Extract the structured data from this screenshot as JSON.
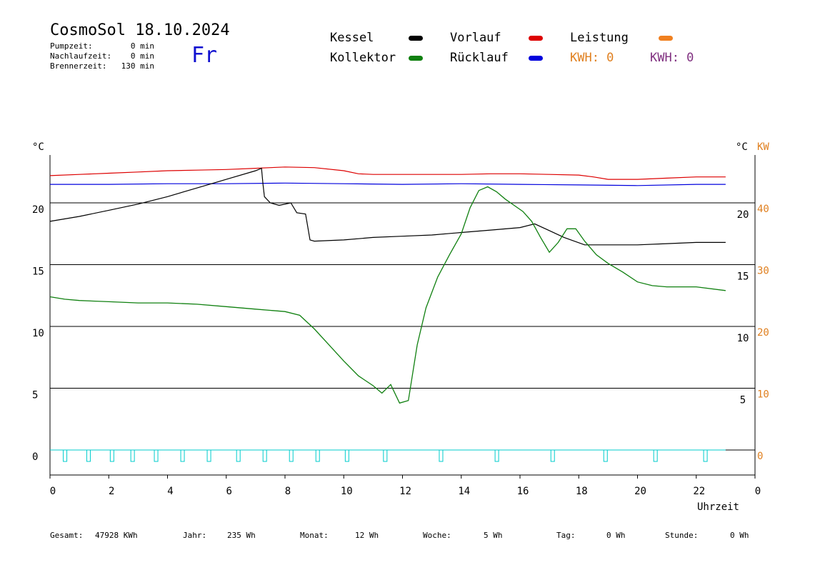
{
  "header": {
    "title": "CosmoSol 18.10.2024",
    "weekday": "Fr",
    "stats": [
      {
        "label": "Pumpzeit:",
        "value": "0 min"
      },
      {
        "label": "Nachlaufzeit:",
        "value": "0 min"
      },
      {
        "label": "Brennerzeit:",
        "value": "130 min"
      }
    ]
  },
  "legend": {
    "kessel": {
      "label": "Kessel",
      "color": "#000000"
    },
    "vorlauf": {
      "label": "Vorlauf",
      "color": "#dd0000"
    },
    "leistung": {
      "label": "Leistung",
      "color": "#f08020"
    },
    "kollektor": {
      "label": "Kollektor",
      "color": "#108010"
    },
    "ruecklauf": {
      "label": "Rücklauf",
      "color": "#0000dd"
    },
    "kwh_orange": {
      "label": "KWH: 0",
      "color": "#e08020"
    },
    "kwh_purple": {
      "label": "KWH: 0",
      "color": "#803080"
    }
  },
  "footer": {
    "gesamt": {
      "label": "Gesamt:",
      "value": "47928 KWh"
    },
    "jahr": {
      "label": "Jahr:",
      "value": "235 Wh"
    },
    "monat": {
      "label": "Monat:",
      "value": "12 Wh"
    },
    "woche": {
      "label": "Woche:",
      "value": "5 Wh"
    },
    "tag": {
      "label": "Tag:",
      "value": "0 Wh"
    },
    "stunde": {
      "label": "Stunde:",
      "value": "0 Wh"
    }
  },
  "chart_data": {
    "type": "line",
    "xlabel": "Uhrzeit",
    "ylabel_left": "°C",
    "ylabel_right": "°C",
    "ylabel_right2": "KW",
    "xlim": [
      0,
      24
    ],
    "ylim": [
      -2,
      24.5
    ],
    "x_ticks": [
      "0",
      "2",
      "4",
      "6",
      "8",
      "10",
      "12",
      "14",
      "16",
      "18",
      "20",
      "22",
      "0"
    ],
    "y_ticks_left": [
      0,
      5,
      10,
      15,
      20
    ],
    "y_ticks_right": [
      5,
      10,
      15,
      20
    ],
    "y_ticks_kw": [
      0,
      10,
      20,
      30,
      40
    ],
    "grid": true,
    "series": [
      {
        "name": "Vorlauf",
        "color": "#dd0000",
        "x": [
          0,
          1,
          2,
          3,
          4,
          5,
          6,
          7,
          7.5,
          8,
          9,
          10,
          10.5,
          11,
          12,
          13,
          14,
          15,
          16,
          17,
          18,
          18.5,
          19,
          20,
          21,
          22,
          23
        ],
        "y": [
          22.2,
          22.3,
          22.4,
          22.5,
          22.6,
          22.65,
          22.7,
          22.8,
          22.85,
          22.9,
          22.85,
          22.6,
          22.35,
          22.3,
          22.3,
          22.3,
          22.3,
          22.35,
          22.35,
          22.3,
          22.25,
          22.1,
          21.9,
          21.9,
          22.0,
          22.1,
          22.1
        ]
      },
      {
        "name": "Rücklauf",
        "color": "#0000dd",
        "x": [
          0,
          2,
          4,
          6,
          8,
          10,
          12,
          14,
          16,
          18,
          20,
          22,
          23
        ],
        "y": [
          21.5,
          21.5,
          21.55,
          21.55,
          21.6,
          21.55,
          21.5,
          21.55,
          21.5,
          21.45,
          21.4,
          21.5,
          21.5
        ]
      },
      {
        "name": "Kessel",
        "color": "#000000",
        "x": [
          0,
          1,
          2,
          3,
          4,
          5,
          6,
          7,
          7.2,
          7.25,
          7.3,
          7.5,
          7.8,
          8.2,
          8.4,
          8.7,
          8.85,
          9,
          10,
          11,
          12,
          13,
          14,
          15,
          16,
          16.5,
          17.5,
          18.2,
          19,
          20,
          21,
          22,
          23
        ],
        "y": [
          18.5,
          18.9,
          19.4,
          19.9,
          20.5,
          21.2,
          21.9,
          22.6,
          22.8,
          21.5,
          20.5,
          20.0,
          19.8,
          20.0,
          19.2,
          19.1,
          17.0,
          16.9,
          17.0,
          17.2,
          17.3,
          17.4,
          17.6,
          17.8,
          18.0,
          18.3,
          17.2,
          16.6,
          16.6,
          16.6,
          16.7,
          16.8,
          16.8
        ]
      },
      {
        "name": "Kollektor",
        "color": "#108010",
        "x": [
          0,
          0.5,
          1,
          2,
          3,
          4,
          5,
          6,
          7,
          7.5,
          8,
          8.5,
          9,
          9.5,
          10,
          10.5,
          11,
          11.3,
          11.6,
          11.9,
          12.2,
          12.5,
          12.8,
          13.2,
          13.6,
          14,
          14.3,
          14.6,
          14.9,
          15.2,
          15.5,
          15.8,
          16.1,
          16.4,
          16.7,
          17,
          17.3,
          17.6,
          17.9,
          18.2,
          18.6,
          19,
          19.5,
          20,
          20.5,
          21,
          22,
          23
        ],
        "y": [
          12.4,
          12.2,
          12.1,
          12.0,
          11.9,
          11.9,
          11.8,
          11.6,
          11.4,
          11.3,
          11.2,
          10.9,
          9.8,
          8.5,
          7.2,
          6.0,
          5.2,
          4.6,
          5.3,
          3.8,
          4.0,
          8.5,
          11.5,
          14.0,
          15.8,
          17.5,
          19.6,
          21.0,
          21.3,
          20.9,
          20.3,
          19.8,
          19.3,
          18.5,
          17.2,
          16.0,
          16.8,
          17.9,
          17.9,
          16.9,
          15.8,
          15.1,
          14.4,
          13.6,
          13.3,
          13.2,
          13.2,
          12.9
        ]
      }
    ],
    "pump_markers": {
      "color": "#00cccc",
      "x": [
        0.5,
        1.3,
        2.1,
        2.8,
        3.6,
        4.5,
        5.4,
        6.4,
        7.3,
        8.2,
        9.1,
        10.1,
        11.4,
        13.3,
        15.2,
        17.1,
        18.9,
        20.6,
        22.3
      ]
    }
  }
}
